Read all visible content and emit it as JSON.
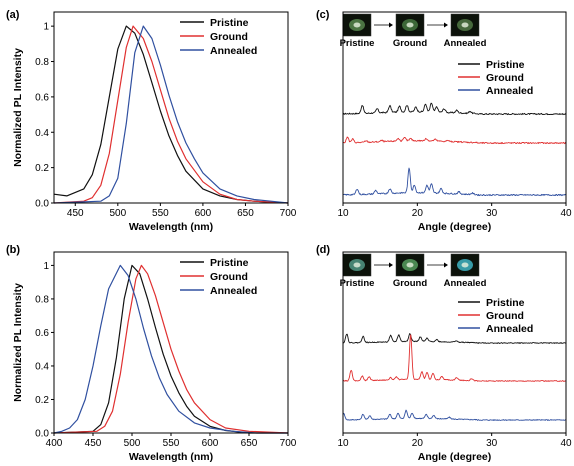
{
  "colors": {
    "pristine": "#111111",
    "ground": "#e03030",
    "annealed": "#3050a0"
  },
  "photos": {
    "c": [
      "#4f7a46",
      "#3f6b3a",
      "#4a6e3e"
    ],
    "d": [
      "#4a8a78",
      "#4f8f55",
      "#3aa3b0"
    ]
  },
  "chart_data": [
    {
      "panel": "(a)",
      "type": "line",
      "xlabel": "Wavelength (nm)",
      "ylabel": "Normalized PL Intensity",
      "xlim": [
        425,
        700
      ],
      "ylim": [
        0,
        1.08
      ],
      "xticks": [
        450,
        500,
        550,
        600,
        650,
        700
      ],
      "yticks": [
        0.0,
        0.2,
        0.4,
        0.6,
        0.8,
        1.0
      ],
      "legend": [
        "Pristine",
        "Ground",
        "Annealed"
      ],
      "series": [
        {
          "name": "Pristine",
          "peak": 510,
          "x": [
            425,
            440,
            460,
            470,
            480,
            490,
            500,
            510,
            520,
            530,
            540,
            550,
            560,
            570,
            580,
            600,
            620,
            640,
            660,
            680,
            700
          ],
          "y": [
            0.05,
            0.04,
            0.08,
            0.16,
            0.33,
            0.6,
            0.87,
            1.0,
            0.96,
            0.84,
            0.68,
            0.52,
            0.38,
            0.27,
            0.18,
            0.08,
            0.04,
            0.02,
            0.01,
            0.005,
            0.0
          ]
        },
        {
          "name": "Ground",
          "peak": 518,
          "x": [
            425,
            460,
            470,
            480,
            490,
            500,
            510,
            518,
            530,
            540,
            550,
            560,
            570,
            580,
            600,
            620,
            640,
            660,
            700
          ],
          "y": [
            0.0,
            0.01,
            0.03,
            0.1,
            0.28,
            0.58,
            0.88,
            1.0,
            0.93,
            0.8,
            0.64,
            0.48,
            0.35,
            0.25,
            0.12,
            0.05,
            0.02,
            0.01,
            0.0
          ]
        },
        {
          "name": "Annealed",
          "peak": 530,
          "x": [
            425,
            480,
            490,
            500,
            510,
            520,
            530,
            540,
            550,
            560,
            570,
            580,
            590,
            600,
            620,
            640,
            660,
            680,
            700
          ],
          "y": [
            0.0,
            0.01,
            0.04,
            0.14,
            0.45,
            0.85,
            1.0,
            0.93,
            0.78,
            0.61,
            0.46,
            0.34,
            0.25,
            0.17,
            0.08,
            0.04,
            0.02,
            0.01,
            0.0
          ]
        }
      ]
    },
    {
      "panel": "(b)",
      "type": "line",
      "xlabel": "Wavelength (nm)",
      "ylabel": "Normalized PL Intensity",
      "xlim": [
        400,
        700
      ],
      "ylim": [
        0,
        1.08
      ],
      "xticks": [
        400,
        450,
        500,
        550,
        600,
        650,
        700
      ],
      "yticks": [
        0.0,
        0.2,
        0.4,
        0.6,
        0.8,
        1.0
      ],
      "legend": [
        "Pristine",
        "Ground",
        "Annealed"
      ],
      "series": [
        {
          "name": "Pristine",
          "peak": 500,
          "x": [
            400,
            450,
            460,
            470,
            480,
            490,
            500,
            510,
            520,
            530,
            540,
            550,
            560,
            570,
            580,
            600,
            620,
            650,
            700
          ],
          "y": [
            0.0,
            0.01,
            0.05,
            0.18,
            0.45,
            0.8,
            1.0,
            0.95,
            0.8,
            0.63,
            0.47,
            0.34,
            0.24,
            0.16,
            0.1,
            0.04,
            0.015,
            0.0,
            0.0
          ]
        },
        {
          "name": "Ground",
          "peak": 512,
          "x": [
            400,
            455,
            465,
            475,
            485,
            495,
            505,
            512,
            520,
            530,
            540,
            550,
            560,
            570,
            580,
            600,
            620,
            650,
            700
          ],
          "y": [
            0.0,
            0.01,
            0.04,
            0.13,
            0.35,
            0.66,
            0.92,
            1.0,
            0.95,
            0.82,
            0.66,
            0.5,
            0.37,
            0.26,
            0.18,
            0.08,
            0.03,
            0.01,
            0.0
          ]
        },
        {
          "name": "Annealed",
          "peak": 485,
          "x": [
            400,
            410,
            420,
            430,
            440,
            450,
            460,
            470,
            485,
            495,
            505,
            515,
            525,
            535,
            545,
            560,
            580,
            600,
            630,
            660,
            700
          ],
          "y": [
            0.0,
            0.01,
            0.03,
            0.08,
            0.2,
            0.4,
            0.64,
            0.86,
            1.0,
            0.94,
            0.8,
            0.62,
            0.46,
            0.33,
            0.23,
            0.13,
            0.06,
            0.03,
            0.01,
            0.0,
            0.0
          ]
        }
      ]
    },
    {
      "panel": "(c)",
      "type": "line",
      "xlabel": "Angle (degree)",
      "xlim": [
        10,
        40
      ],
      "xticks": [
        10,
        20,
        30,
        40
      ],
      "legend": [
        "Pristine",
        "Ground",
        "Annealed"
      ],
      "photo_labels": [
        "Pristine",
        "Ground",
        "Annealed"
      ],
      "series": [
        {
          "name": "Pristine",
          "baseline": 0.5,
          "peaks": [
            [
              12.6,
              0.32
            ],
            [
              14.6,
              0.16
            ],
            [
              16.3,
              0.26
            ],
            [
              17.6,
              0.22
            ],
            [
              18.6,
              0.26
            ],
            [
              19.8,
              0.18
            ],
            [
              21.1,
              0.3
            ],
            [
              21.9,
              0.34
            ],
            [
              22.6,
              0.2
            ],
            [
              23.6,
              0.14
            ],
            [
              25.3,
              0.1
            ],
            [
              27.1,
              0.08
            ]
          ]
        },
        {
          "name": "Ground",
          "baseline": 0.5,
          "peaks": [
            [
              10.6,
              0.22
            ],
            [
              11.3,
              0.14
            ],
            [
              13.1,
              0.06
            ],
            [
              15.2,
              0.05
            ],
            [
              17.4,
              0.1
            ],
            [
              18.3,
              0.12
            ],
            [
              19.1,
              0.08
            ],
            [
              21.2,
              0.08
            ],
            [
              22.4,
              0.06
            ],
            [
              24.1,
              0.04
            ]
          ]
        },
        {
          "name": "Annealed",
          "baseline": 0.5,
          "peaks": [
            [
              11.9,
              0.22
            ],
            [
              14.4,
              0.14
            ],
            [
              16.3,
              0.18
            ],
            [
              18.9,
              0.95
            ],
            [
              19.6,
              0.3
            ],
            [
              21.3,
              0.3
            ],
            [
              21.9,
              0.34
            ],
            [
              23.2,
              0.18
            ],
            [
              25.6,
              0.08
            ],
            [
              27.4,
              0.05
            ]
          ]
        }
      ]
    },
    {
      "panel": "(d)",
      "type": "line",
      "xlabel": "Angle (degree)",
      "xlim": [
        10,
        40
      ],
      "xticks": [
        10,
        20,
        30,
        40
      ],
      "legend": [
        "Pristine",
        "Ground",
        "Annealed"
      ],
      "photo_labels": [
        "Pristine",
        "Ground",
        "Annealed"
      ],
      "series": [
        {
          "name": "Pristine",
          "baseline": 0.5,
          "peaks": [
            [
              10.5,
              0.5
            ],
            [
              12.7,
              0.35
            ],
            [
              16.4,
              0.35
            ],
            [
              17.5,
              0.38
            ],
            [
              19.0,
              0.45
            ],
            [
              20.4,
              0.25
            ],
            [
              21.3,
              0.18
            ],
            [
              22.6,
              0.12
            ],
            [
              25.2,
              0.08
            ]
          ]
        },
        {
          "name": "Ground",
          "baseline": 0.5,
          "peaks": [
            [
              11.1,
              0.6
            ],
            [
              12.6,
              0.25
            ],
            [
              13.5,
              0.2
            ],
            [
              16.4,
              0.12
            ],
            [
              17.2,
              0.15
            ],
            [
              19.1,
              2.5
            ],
            [
              20.6,
              0.42
            ],
            [
              21.3,
              0.4
            ],
            [
              22.1,
              0.35
            ],
            [
              23.3,
              0.2
            ],
            [
              25.3,
              0.15
            ],
            [
              27.3,
              0.12
            ]
          ]
        },
        {
          "name": "Annealed",
          "baseline": 0.5,
          "peaks": [
            [
              10.1,
              0.35
            ],
            [
              12.7,
              0.3
            ],
            [
              13.6,
              0.22
            ],
            [
              16.3,
              0.25
            ],
            [
              17.4,
              0.3
            ],
            [
              18.5,
              0.45
            ],
            [
              19.3,
              0.3
            ],
            [
              21.2,
              0.22
            ],
            [
              22.2,
              0.18
            ],
            [
              24.3,
              0.1
            ]
          ]
        }
      ]
    }
  ]
}
